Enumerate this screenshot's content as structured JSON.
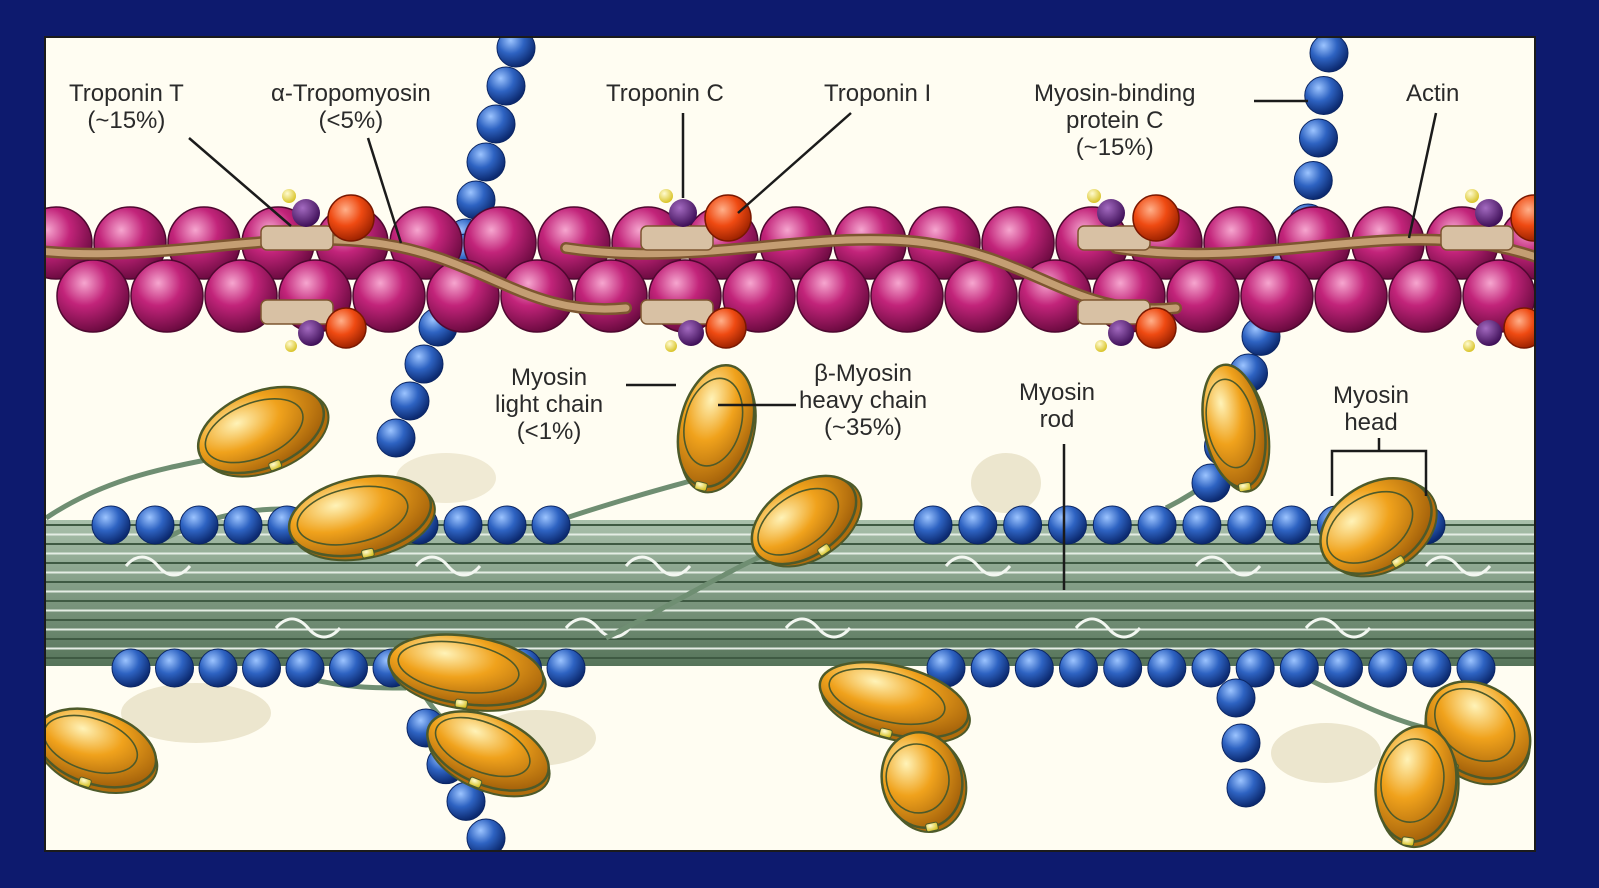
{
  "labels": {
    "troponin_t": {
      "name": "Troponin T",
      "pct": "(~15%)"
    },
    "tropomyosin": {
      "name": "α-Tropomyosin",
      "pct": "(<5%)"
    },
    "troponin_c": {
      "name": "Troponin C"
    },
    "troponin_i": {
      "name": "Troponin I"
    },
    "mybpc": {
      "line1": "Myosin-binding",
      "line2": "protein C",
      "pct": "(~15%)"
    },
    "actin": {
      "name": "Actin"
    },
    "light_chain": {
      "line1": "Myosin",
      "line2": "light chain",
      "pct": "(<1%)"
    },
    "heavy_chain": {
      "line1": "β-Myosin",
      "line2": "heavy chain",
      "pct": "(~35%)"
    },
    "rod": {
      "line1": "Myosin",
      "line2": "rod"
    },
    "head": {
      "line1": "Myosin",
      "line2": "head"
    }
  },
  "colors": {
    "slide_background": "#0d1a6e",
    "panel_background": "#fffdf2",
    "actin": "#c2247a",
    "troponin": "#ef4a12",
    "tropomyosin": "#b0845a",
    "titin_bead": "#2e63c2",
    "myosin_head": "#f0a21c",
    "thick_filament": "#7f9d83"
  }
}
